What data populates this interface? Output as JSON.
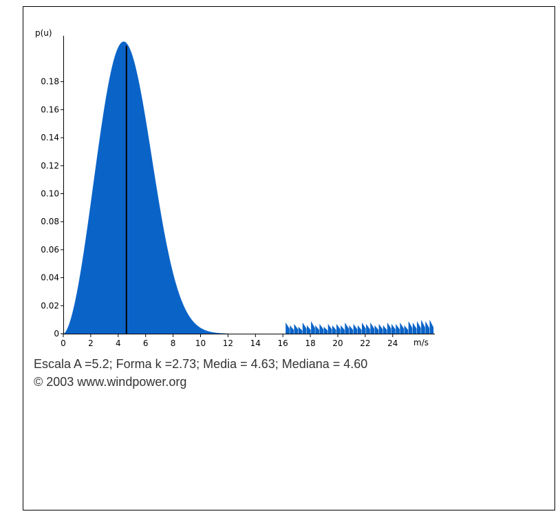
{
  "chart_data": {
    "type": "area",
    "ylabel": "p(u)",
    "xlabel": "m/s",
    "xlim": [
      0,
      27
    ],
    "ylim": [
      0,
      0.2
    ],
    "x_ticks": [
      "0",
      "2",
      "4",
      "6",
      "8",
      "10",
      "12",
      "14",
      "16",
      "18",
      "20",
      "22",
      "24"
    ],
    "y_ticks": [
      "0",
      "0.02",
      "0.04",
      "0.06",
      "0.08",
      "0.10",
      "0.12",
      "0.14",
      "0.16",
      "0.18"
    ],
    "series": [
      {
        "scale_A": 5.2,
        "shape_k": 2.73,
        "mean": 4.63,
        "median": 4.6,
        "color": "#0a64c8"
      }
    ],
    "median_line": {
      "x": 4.6,
      "color": "#000000"
    },
    "spikes": {
      "x_start": 16.2,
      "x_end": 27,
      "peak_values": [
        0.008,
        0.006,
        0.007,
        0.005,
        0.008,
        0.006,
        0.009,
        0.006,
        0.007,
        0.005,
        0.007,
        0.006,
        0.007,
        0.006,
        0.008,
        0.006,
        0.007,
        0.006,
        0.008,
        0.007,
        0.008,
        0.006,
        0.007,
        0.006,
        0.008,
        0.007,
        0.007,
        0.008,
        0.006,
        0.009,
        0.008,
        0.009,
        0.01,
        0.009,
        0.01
      ]
    }
  },
  "caption": {
    "params": "Escala A =5.2; Forma k =2.73; Media = 4.63; Mediana = 4.60",
    "copyright": "© 2003 www.windpower.org"
  }
}
